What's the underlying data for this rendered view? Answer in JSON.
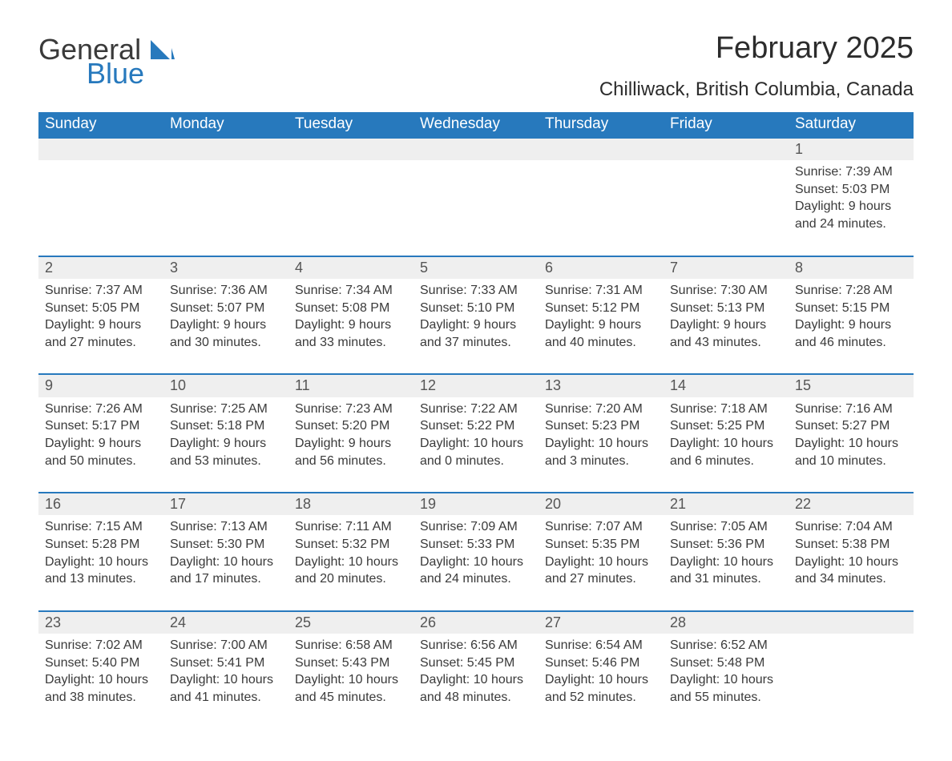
{
  "brand": {
    "name_part1": "General",
    "name_part2": "Blue",
    "text_color": "#3a3a3a",
    "accent_color": "#2779bd"
  },
  "title": {
    "month": "February 2025",
    "location": "Chilliwack, British Columbia, Canada",
    "title_fontsize": 38,
    "location_fontsize": 24
  },
  "style": {
    "header_bg": "#2779bd",
    "header_text_color": "#ffffff",
    "daynum_bg": "#efefef",
    "border_top_color": "#2779bd",
    "body_text_color": "#3a3a3a",
    "body_fontsize": 16,
    "header_fontsize": 19,
    "daynum_fontsize": 18,
    "background": "#ffffff",
    "font_family": "Segoe UI"
  },
  "calendar": {
    "type": "table",
    "columns": [
      "Sunday",
      "Monday",
      "Tuesday",
      "Wednesday",
      "Thursday",
      "Friday",
      "Saturday"
    ],
    "weeks": [
      [
        null,
        null,
        null,
        null,
        null,
        null,
        {
          "day": "1",
          "sunrise": "Sunrise: 7:39 AM",
          "sunset": "Sunset: 5:03 PM",
          "daylight": "Daylight: 9 hours and 24 minutes."
        }
      ],
      [
        {
          "day": "2",
          "sunrise": "Sunrise: 7:37 AM",
          "sunset": "Sunset: 5:05 PM",
          "daylight": "Daylight: 9 hours and 27 minutes."
        },
        {
          "day": "3",
          "sunrise": "Sunrise: 7:36 AM",
          "sunset": "Sunset: 5:07 PM",
          "daylight": "Daylight: 9 hours and 30 minutes."
        },
        {
          "day": "4",
          "sunrise": "Sunrise: 7:34 AM",
          "sunset": "Sunset: 5:08 PM",
          "daylight": "Daylight: 9 hours and 33 minutes."
        },
        {
          "day": "5",
          "sunrise": "Sunrise: 7:33 AM",
          "sunset": "Sunset: 5:10 PM",
          "daylight": "Daylight: 9 hours and 37 minutes."
        },
        {
          "day": "6",
          "sunrise": "Sunrise: 7:31 AM",
          "sunset": "Sunset: 5:12 PM",
          "daylight": "Daylight: 9 hours and 40 minutes."
        },
        {
          "day": "7",
          "sunrise": "Sunrise: 7:30 AM",
          "sunset": "Sunset: 5:13 PM",
          "daylight": "Daylight: 9 hours and 43 minutes."
        },
        {
          "day": "8",
          "sunrise": "Sunrise: 7:28 AM",
          "sunset": "Sunset: 5:15 PM",
          "daylight": "Daylight: 9 hours and 46 minutes."
        }
      ],
      [
        {
          "day": "9",
          "sunrise": "Sunrise: 7:26 AM",
          "sunset": "Sunset: 5:17 PM",
          "daylight": "Daylight: 9 hours and 50 minutes."
        },
        {
          "day": "10",
          "sunrise": "Sunrise: 7:25 AM",
          "sunset": "Sunset: 5:18 PM",
          "daylight": "Daylight: 9 hours and 53 minutes."
        },
        {
          "day": "11",
          "sunrise": "Sunrise: 7:23 AM",
          "sunset": "Sunset: 5:20 PM",
          "daylight": "Daylight: 9 hours and 56 minutes."
        },
        {
          "day": "12",
          "sunrise": "Sunrise: 7:22 AM",
          "sunset": "Sunset: 5:22 PM",
          "daylight": "Daylight: 10 hours and 0 minutes."
        },
        {
          "day": "13",
          "sunrise": "Sunrise: 7:20 AM",
          "sunset": "Sunset: 5:23 PM",
          "daylight": "Daylight: 10 hours and 3 minutes."
        },
        {
          "day": "14",
          "sunrise": "Sunrise: 7:18 AM",
          "sunset": "Sunset: 5:25 PM",
          "daylight": "Daylight: 10 hours and 6 minutes."
        },
        {
          "day": "15",
          "sunrise": "Sunrise: 7:16 AM",
          "sunset": "Sunset: 5:27 PM",
          "daylight": "Daylight: 10 hours and 10 minutes."
        }
      ],
      [
        {
          "day": "16",
          "sunrise": "Sunrise: 7:15 AM",
          "sunset": "Sunset: 5:28 PM",
          "daylight": "Daylight: 10 hours and 13 minutes."
        },
        {
          "day": "17",
          "sunrise": "Sunrise: 7:13 AM",
          "sunset": "Sunset: 5:30 PM",
          "daylight": "Daylight: 10 hours and 17 minutes."
        },
        {
          "day": "18",
          "sunrise": "Sunrise: 7:11 AM",
          "sunset": "Sunset: 5:32 PM",
          "daylight": "Daylight: 10 hours and 20 minutes."
        },
        {
          "day": "19",
          "sunrise": "Sunrise: 7:09 AM",
          "sunset": "Sunset: 5:33 PM",
          "daylight": "Daylight: 10 hours and 24 minutes."
        },
        {
          "day": "20",
          "sunrise": "Sunrise: 7:07 AM",
          "sunset": "Sunset: 5:35 PM",
          "daylight": "Daylight: 10 hours and 27 minutes."
        },
        {
          "day": "21",
          "sunrise": "Sunrise: 7:05 AM",
          "sunset": "Sunset: 5:36 PM",
          "daylight": "Daylight: 10 hours and 31 minutes."
        },
        {
          "day": "22",
          "sunrise": "Sunrise: 7:04 AM",
          "sunset": "Sunset: 5:38 PM",
          "daylight": "Daylight: 10 hours and 34 minutes."
        }
      ],
      [
        {
          "day": "23",
          "sunrise": "Sunrise: 7:02 AM",
          "sunset": "Sunset: 5:40 PM",
          "daylight": "Daylight: 10 hours and 38 minutes."
        },
        {
          "day": "24",
          "sunrise": "Sunrise: 7:00 AM",
          "sunset": "Sunset: 5:41 PM",
          "daylight": "Daylight: 10 hours and 41 minutes."
        },
        {
          "day": "25",
          "sunrise": "Sunrise: 6:58 AM",
          "sunset": "Sunset: 5:43 PM",
          "daylight": "Daylight: 10 hours and 45 minutes."
        },
        {
          "day": "26",
          "sunrise": "Sunrise: 6:56 AM",
          "sunset": "Sunset: 5:45 PM",
          "daylight": "Daylight: 10 hours and 48 minutes."
        },
        {
          "day": "27",
          "sunrise": "Sunrise: 6:54 AM",
          "sunset": "Sunset: 5:46 PM",
          "daylight": "Daylight: 10 hours and 52 minutes."
        },
        {
          "day": "28",
          "sunrise": "Sunrise: 6:52 AM",
          "sunset": "Sunset: 5:48 PM",
          "daylight": "Daylight: 10 hours and 55 minutes."
        },
        null
      ]
    ]
  }
}
